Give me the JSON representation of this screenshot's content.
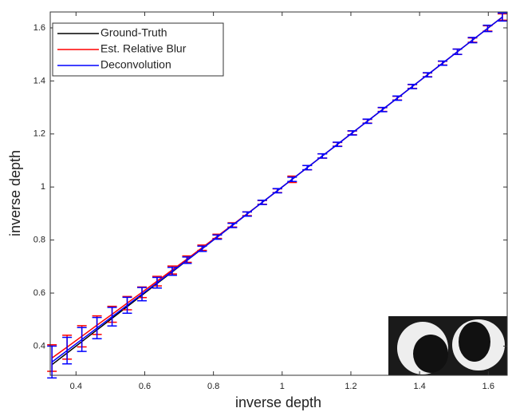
{
  "chart_data": {
    "type": "errorbar-line",
    "xlabel": "inverse depth",
    "ylabel": "inverse depth",
    "x": [
      0.33,
      0.374,
      0.417,
      0.461,
      0.505,
      0.549,
      0.592,
      0.636,
      0.68,
      0.723,
      0.767,
      0.811,
      0.855,
      0.898,
      0.942,
      0.986,
      1.029,
      1.073,
      1.117,
      1.161,
      1.204,
      1.248,
      1.292,
      1.335,
      1.379,
      1.423,
      1.467,
      1.51,
      1.554,
      1.598,
      1.641
    ],
    "series": [
      {
        "name": "Ground-Truth",
        "color": "#000000",
        "values": [
          0.33,
          0.374,
          0.417,
          0.461,
          0.505,
          0.549,
          0.592,
          0.636,
          0.68,
          0.723,
          0.767,
          0.811,
          0.855,
          0.898,
          0.942,
          0.986,
          1.029,
          1.073,
          1.117,
          1.161,
          1.204,
          1.248,
          1.292,
          1.335,
          1.379,
          1.423,
          1.467,
          1.51,
          1.554,
          1.598,
          1.641
        ]
      },
      {
        "name": "Est. Relative Blur",
        "color": "#ff0000",
        "values": [
          0.355,
          0.396,
          0.437,
          0.479,
          0.52,
          0.562,
          0.603,
          0.645,
          0.687,
          0.728,
          0.771,
          0.814,
          0.857,
          0.899,
          0.942,
          0.986,
          1.029,
          1.073,
          1.117,
          1.161,
          1.204,
          1.248,
          1.292,
          1.335,
          1.379,
          1.423,
          1.467,
          1.51,
          1.554,
          1.598,
          1.641
        ],
        "errors": [
          0.05,
          0.045,
          0.04,
          0.035,
          0.03,
          0.025,
          0.02,
          0.018,
          0.015,
          0.012,
          0.01,
          0.008,
          0.008,
          0.007,
          0.007,
          0.007,
          0.012,
          0.008,
          0.008,
          0.007,
          0.007,
          0.007,
          0.007,
          0.007,
          0.007,
          0.007,
          0.007,
          0.01,
          0.008,
          0.01,
          0.012
        ]
      },
      {
        "name": "Deconvolution",
        "color": "#0000ff",
        "values": [
          0.34,
          0.383,
          0.425,
          0.468,
          0.511,
          0.554,
          0.596,
          0.639,
          0.682,
          0.724,
          0.767,
          0.811,
          0.855,
          0.898,
          0.942,
          0.986,
          1.029,
          1.073,
          1.117,
          1.161,
          1.204,
          1.248,
          1.292,
          1.335,
          1.379,
          1.423,
          1.467,
          1.51,
          1.554,
          1.598,
          1.641
        ],
        "errors": [
          0.06,
          0.05,
          0.045,
          0.04,
          0.035,
          0.03,
          0.025,
          0.02,
          0.015,
          0.012,
          0.01,
          0.008,
          0.008,
          0.008,
          0.008,
          0.008,
          0.008,
          0.008,
          0.008,
          0.008,
          0.008,
          0.008,
          0.008,
          0.008,
          0.008,
          0.008,
          0.008,
          0.01,
          0.01,
          0.012,
          0.015
        ]
      }
    ],
    "xlim": [
      0.325,
      1.655
    ],
    "ylim": [
      0.29,
      1.66
    ],
    "xticks": [
      0.4,
      0.6,
      0.8,
      1,
      1.2,
      1.4,
      1.6
    ],
    "yticks": [
      0.4,
      0.6,
      0.8,
      1,
      1.2,
      1.4,
      1.6
    ],
    "legend": "upper-left"
  }
}
